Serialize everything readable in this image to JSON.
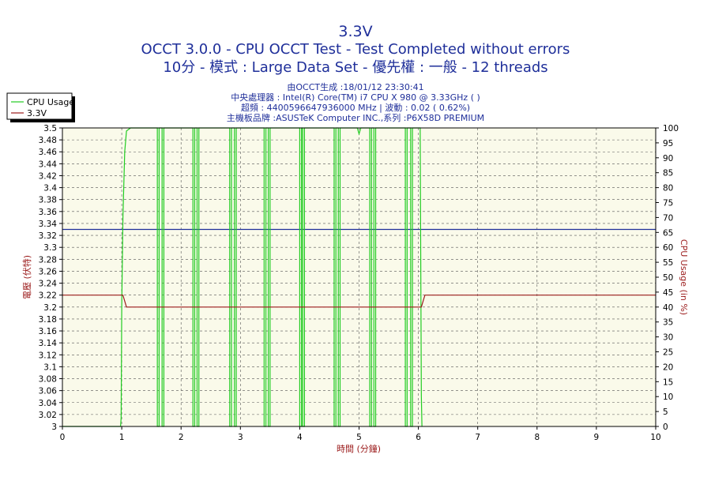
{
  "chart_data": {
    "type": "line",
    "title": "3.3V",
    "subtitle_1": "OCCT 3.0.0 - CPU OCCT Test - Test Completed without errors",
    "subtitle_2": "10分 - 模式 : Large Data Set - 優先權 : 一般 - 12 threads",
    "info_lines": [
      "由OCCT生成 :18/01/12 23:30:41",
      "中央處理器 : Intel(R) Core(TM) i7 CPU X 980 @ 3.33GHz (    )",
      "超頻 : 4400596647936000 MHz | 波動 : 0.02 ( 0.62%)",
      "主機板品牌 :ASUSTeK Computer INC.,系列 :P6X58D PREMIUM"
    ],
    "xlabel": "時間 (分鐘)",
    "ylabel_left": "電壓 (伏特)",
    "ylabel_right": "CPU Usage (in %)",
    "xlim": [
      0,
      10
    ],
    "ylim_left": [
      3.0,
      3.5
    ],
    "ylim_right": [
      0,
      100
    ],
    "x_ticks": [
      "0",
      "1",
      "2",
      "3",
      "4",
      "5",
      "6",
      "7",
      "8",
      "9",
      "10"
    ],
    "y_left_ticks": [
      "3",
      "3.02",
      "3.04",
      "3.06",
      "3.08",
      "3.1",
      "3.12",
      "3.14",
      "3.16",
      "3.18",
      "3.2",
      "3.22",
      "3.24",
      "3.26",
      "3.28",
      "3.3",
      "3.32",
      "3.34",
      "3.36",
      "3.38",
      "3.4",
      "3.42",
      "3.44",
      "3.46",
      "3.48",
      "3.5"
    ],
    "y_right_ticks": [
      "0",
      "5",
      "10",
      "15",
      "20",
      "25",
      "30",
      "35",
      "40",
      "45",
      "50",
      "55",
      "60",
      "65",
      "70",
      "75",
      "80",
      "85",
      "90",
      "95",
      "100"
    ],
    "grid": true,
    "legend_position": "top-left",
    "reference_line": {
      "y": 3.33,
      "color": "#1f2f9a"
    },
    "series": [
      {
        "name": "CPU Usage",
        "axis": "right",
        "color": "#22cc22",
        "x": [
          0,
          0.98,
          0.99,
          1.0,
          1.02,
          1.05,
          1.08,
          1.15,
          1.6,
          1.6,
          1.63,
          1.63,
          1.68,
          1.68,
          1.71,
          1.71,
          2.2,
          2.2,
          2.23,
          2.23,
          2.27,
          2.27,
          2.3,
          2.3,
          2.82,
          2.82,
          2.85,
          2.85,
          2.9,
          2.9,
          2.93,
          2.93,
          3.4,
          3.4,
          3.43,
          3.43,
          3.47,
          3.47,
          3.5,
          3.5,
          4.0,
          4.0,
          4.03,
          4.03,
          4.05,
          4.05,
          4.08,
          4.08,
          4.58,
          4.58,
          4.61,
          4.61,
          4.65,
          4.65,
          4.68,
          4.68,
          4.97,
          5.0,
          5.03,
          5.18,
          5.18,
          5.21,
          5.21,
          5.25,
          5.25,
          5.28,
          5.28,
          5.78,
          5.78,
          5.81,
          5.81,
          5.87,
          5.87,
          5.9,
          5.9,
          6.03,
          6.05,
          6.06
        ],
        "values": [
          0,
          0,
          3,
          40,
          70,
          92,
          99,
          100,
          100,
          0,
          0,
          100,
          100,
          0,
          0,
          100,
          100,
          0,
          0,
          100,
          100,
          0,
          0,
          100,
          100,
          0,
          0,
          100,
          100,
          0,
          0,
          100,
          100,
          0,
          0,
          100,
          100,
          0,
          0,
          100,
          100,
          0,
          0,
          100,
          100,
          0,
          0,
          100,
          100,
          0,
          0,
          100,
          100,
          0,
          0,
          100,
          100,
          98,
          100,
          100,
          0,
          0,
          100,
          100,
          0,
          0,
          100,
          100,
          0,
          0,
          100,
          100,
          0,
          0,
          100,
          100,
          10,
          0
        ]
      },
      {
        "name": "3.3V",
        "axis": "left",
        "color": "#9b1b1b",
        "x": [
          0,
          1.02,
          1.08,
          6.05,
          6.11,
          10
        ],
        "values": [
          3.22,
          3.22,
          3.2,
          3.2,
          3.22,
          3.22
        ]
      }
    ]
  }
}
